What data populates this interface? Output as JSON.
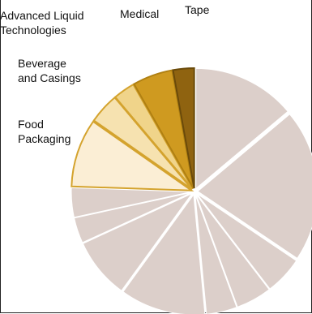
{
  "chart_data": {
    "type": "pie",
    "title": "",
    "labels": [
      "",
      "",
      "",
      "",
      "",
      "",
      "",
      "",
      "",
      "Food Packaging",
      "Beverage and Casings",
      "Advanced Liquid Technologies",
      "Medical",
      "Tape"
    ],
    "values": [
      16.2,
      23.9,
      6.0,
      5.6,
      4.8,
      13.4,
      9.5,
      4.0,
      4.6,
      10.7,
      4.8,
      3.4,
      6.3,
      3.3
    ],
    "highlighted": [
      false,
      false,
      false,
      false,
      false,
      false,
      false,
      false,
      false,
      true,
      true,
      true,
      true,
      true
    ],
    "colors": [
      "#dccfca",
      "#dccfca",
      "#dccfca",
      "#dccfca",
      "#dccfca",
      "#dccfca",
      "#dccfca",
      "#dccfca",
      "#dccfca",
      "#fbeed5",
      "#f6e2b0",
      "#f0d48a",
      "#cf9a20",
      "#8f6310"
    ],
    "stroke_colors": [
      "#ffffff",
      "#ffffff",
      "#ffffff",
      "#ffffff",
      "#ffffff",
      "#ffffff",
      "#ffffff",
      "#ffffff",
      "#ffffff",
      "#d4a32e",
      "#d4a32e",
      "#d4a32e",
      "#b08012",
      "#6a4a0a"
    ],
    "start_angle_deg": 0,
    "direction": "clockwise",
    "label_lines": {
      "Food Packaging": [
        "Food",
        "Packaging"
      ],
      "Beverage and Casings": [
        "Beverage",
        "and Casings"
      ],
      "Advanced Liquid Technologies": [
        "Advanced Liquid",
        "Technologies"
      ],
      "Medical": [
        "Medical"
      ],
      "Tape": [
        "Tape"
      ]
    }
  }
}
